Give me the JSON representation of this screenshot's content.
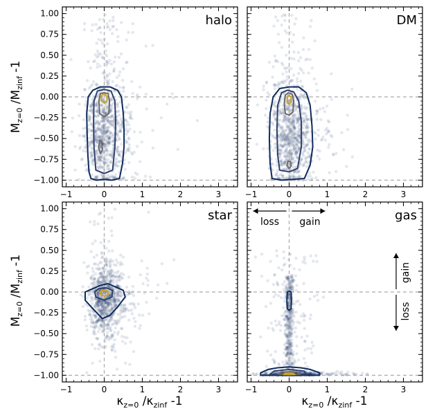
{
  "figure": {
    "xlabel": "κz=0 /κzinf -1",
    "ylabel": "Mz=0 /Mzinf -1",
    "xlabel_parts": {
      "kappa": "κ",
      "sub1": "z=0",
      "mid": " /",
      "sub2": "zinf",
      "tail": " -1"
    },
    "ylabel_parts": {
      "m": "M",
      "sub1": "z=0",
      "mid": " /M",
      "sub2": "zinf",
      "tail": " -1"
    }
  },
  "chart_data": [
    {
      "type": "scatter",
      "panel": "halo",
      "xlim": [
        -1.1,
        3.5
      ],
      "ylim": [
        -1.08,
        1.08
      ],
      "xticks": [
        -1,
        0,
        1,
        2,
        3
      ],
      "yticks": [
        -1.0,
        -0.75,
        -0.5,
        -0.25,
        0.0,
        0.25,
        0.5,
        0.75,
        1.0
      ],
      "ref_lines": {
        "x": 0,
        "y": [
          0,
          -1
        ]
      },
      "density_center": [
        0.0,
        -0.4
      ],
      "contours": [
        {
          "level": "outer",
          "color": "#0d2a5c",
          "points": [
            [
              -0.35,
              -0.98
            ],
            [
              -0.2,
              -1.0
            ],
            [
              0.0,
              -0.99
            ],
            [
              0.2,
              -1.0
            ],
            [
              0.4,
              -0.98
            ],
            [
              0.48,
              -0.8
            ],
            [
              0.52,
              -0.6
            ],
            [
              0.52,
              -0.4
            ],
            [
              0.5,
              -0.2
            ],
            [
              0.45,
              0.0
            ],
            [
              0.35,
              0.08
            ],
            [
              0.15,
              0.12
            ],
            [
              -0.1,
              0.12
            ],
            [
              -0.3,
              0.08
            ],
            [
              -0.42,
              0.0
            ],
            [
              -0.46,
              -0.2
            ],
            [
              -0.45,
              -0.45
            ],
            [
              -0.43,
              -0.7
            ],
            [
              -0.4,
              -0.9
            ]
          ]
        },
        {
          "level": "mid",
          "color": "#2e3f6b",
          "points": [
            [
              -0.22,
              -0.88
            ],
            [
              0.0,
              -0.92
            ],
            [
              0.22,
              -0.88
            ],
            [
              0.28,
              -0.6
            ],
            [
              0.3,
              -0.3
            ],
            [
              0.28,
              -0.05
            ],
            [
              0.18,
              0.07
            ],
            [
              0.0,
              0.09
            ],
            [
              -0.18,
              0.07
            ],
            [
              -0.27,
              -0.05
            ],
            [
              -0.28,
              -0.3
            ],
            [
              -0.27,
              -0.6
            ]
          ]
        },
        {
          "level": "inner",
          "color": "#6a6a6a",
          "points": [
            [
              -0.12,
              -0.2
            ],
            [
              0.0,
              -0.24
            ],
            [
              0.12,
              -0.2
            ],
            [
              0.14,
              -0.05
            ],
            [
              0.1,
              0.04
            ],
            [
              0.0,
              0.05
            ],
            [
              -0.1,
              0.04
            ],
            [
              -0.14,
              -0.05
            ]
          ]
        },
        {
          "level": "inner2",
          "color": "#6a6a6a",
          "points": [
            [
              -0.15,
              -0.6
            ],
            [
              -0.1,
              -0.68
            ],
            [
              -0.05,
              -0.64
            ],
            [
              -0.06,
              -0.55
            ],
            [
              -0.11,
              -0.52
            ]
          ]
        },
        {
          "level": "core",
          "color": "#c9a227",
          "points": [
            [
              -0.07,
              -0.05
            ],
            [
              0.0,
              -0.07
            ],
            [
              0.07,
              -0.05
            ],
            [
              0.08,
              0.0
            ],
            [
              0.03,
              0.03
            ],
            [
              -0.04,
              0.03
            ],
            [
              -0.08,
              0.0
            ]
          ]
        }
      ]
    },
    {
      "type": "scatter",
      "panel": "DM",
      "xlim": [
        -1.1,
        3.5
      ],
      "ylim": [
        -1.08,
        1.08
      ],
      "xticks": [
        -1,
        0,
        1,
        2,
        3
      ],
      "yticks": [
        -1.0,
        -0.75,
        -0.5,
        -0.25,
        0.0,
        0.25,
        0.5,
        0.75,
        1.0
      ],
      "ref_lines": {
        "x": 0,
        "y": [
          0,
          -1
        ]
      },
      "density_center": [
        0.0,
        -0.4
      ],
      "contours": [
        {
          "level": "outer",
          "color": "#0d2a5c",
          "points": [
            [
              -0.45,
              -0.98
            ],
            [
              -0.2,
              -1.0
            ],
            [
              0.1,
              -0.99
            ],
            [
              0.4,
              -0.98
            ],
            [
              0.55,
              -0.82
            ],
            [
              0.62,
              -0.6
            ],
            [
              0.6,
              -0.35
            ],
            [
              0.55,
              -0.1
            ],
            [
              0.45,
              0.05
            ],
            [
              0.25,
              0.12
            ],
            [
              0.0,
              0.12
            ],
            [
              -0.25,
              0.1
            ],
            [
              -0.42,
              0.0
            ],
            [
              -0.5,
              -0.2
            ],
            [
              -0.52,
              -0.5
            ],
            [
              -0.5,
              -0.8
            ]
          ]
        },
        {
          "level": "mid",
          "color": "#2e3f6b",
          "points": [
            [
              -0.25,
              -0.88
            ],
            [
              0.0,
              -0.9
            ],
            [
              0.22,
              -0.86
            ],
            [
              0.32,
              -0.6
            ],
            [
              0.32,
              -0.3
            ],
            [
              0.25,
              -0.05
            ],
            [
              0.12,
              0.06
            ],
            [
              -0.05,
              0.08
            ],
            [
              -0.2,
              0.05
            ],
            [
              -0.3,
              -0.1
            ],
            [
              -0.32,
              -0.4
            ],
            [
              -0.3,
              -0.7
            ]
          ]
        },
        {
          "level": "inner",
          "color": "#6a6a6a",
          "points": [
            [
              -0.1,
              -0.2
            ],
            [
              0.0,
              -0.22
            ],
            [
              0.1,
              -0.18
            ],
            [
              0.12,
              -0.05
            ],
            [
              0.08,
              0.03
            ],
            [
              -0.02,
              0.05
            ],
            [
              -0.1,
              0.02
            ],
            [
              -0.13,
              -0.08
            ]
          ]
        },
        {
          "level": "inner2",
          "color": "#6a6a6a",
          "points": [
            [
              -0.06,
              -0.82
            ],
            [
              0.0,
              -0.86
            ],
            [
              0.05,
              -0.83
            ],
            [
              0.04,
              -0.78
            ],
            [
              -0.03,
              -0.77
            ]
          ]
        },
        {
          "level": "core",
          "color": "#c9a227",
          "points": [
            [
              -0.05,
              -0.07
            ],
            [
              0.0,
              -0.09
            ],
            [
              0.05,
              -0.06
            ],
            [
              0.05,
              0.0
            ],
            [
              0.0,
              0.02
            ],
            [
              -0.05,
              0.0
            ]
          ]
        }
      ]
    },
    {
      "type": "scatter",
      "panel": "star",
      "xlim": [
        -1.1,
        3.5
      ],
      "ylim": [
        -1.08,
        1.08
      ],
      "xticks": [
        -1,
        0,
        1,
        2,
        3
      ],
      "yticks": [
        -1.0,
        -0.75,
        -0.5,
        -0.25,
        0.0,
        0.25,
        0.5,
        0.75,
        1.0
      ],
      "ref_lines": {
        "x": 0,
        "y": [
          0,
          -1
        ]
      },
      "density_center": [
        0.0,
        -0.05
      ],
      "contours": [
        {
          "level": "outer",
          "color": "#0d2a5c",
          "points": [
            [
              -0.5,
              -0.1
            ],
            [
              -0.3,
              -0.2
            ],
            [
              -0.05,
              -0.32
            ],
            [
              0.15,
              -0.28
            ],
            [
              0.35,
              -0.18
            ],
            [
              0.55,
              -0.06
            ],
            [
              0.5,
              0.02
            ],
            [
              0.3,
              0.06
            ],
            [
              0.1,
              0.1
            ],
            [
              -0.1,
              0.08
            ],
            [
              -0.3,
              0.04
            ],
            [
              -0.5,
              0.0
            ]
          ]
        },
        {
          "level": "mid",
          "color": "#2e3f6b",
          "points": [
            [
              -0.22,
              -0.06
            ],
            [
              0.0,
              -0.1
            ],
            [
              0.2,
              -0.06
            ],
            [
              0.22,
              0.02
            ],
            [
              0.05,
              0.05
            ],
            [
              -0.15,
              0.04
            ],
            [
              -0.25,
              0.0
            ]
          ]
        },
        {
          "level": "core",
          "color": "#c9a227",
          "points": [
            [
              -0.1,
              -0.03
            ],
            [
              0.0,
              -0.05
            ],
            [
              0.1,
              -0.03
            ],
            [
              0.1,
              0.01
            ],
            [
              0.0,
              0.02
            ],
            [
              -0.1,
              0.01
            ]
          ]
        }
      ]
    },
    {
      "type": "scatter",
      "panel": "gas",
      "xlim": [
        -1.1,
        3.5
      ],
      "ylim": [
        -1.08,
        1.08
      ],
      "xticks": [
        -1,
        0,
        1,
        2,
        3
      ],
      "yticks": [
        -1.0,
        -0.75,
        -0.5,
        -0.25,
        0.0,
        0.25,
        0.5,
        0.75,
        1.0
      ],
      "ref_lines": {
        "x": 0,
        "y": [
          0,
          -1
        ]
      },
      "density_center": [
        0.0,
        -0.5
      ],
      "annotations": {
        "x_loss": "loss",
        "x_gain": "gain",
        "y_loss": "loss",
        "y_gain": "gain"
      },
      "contours": [
        {
          "level": "outer",
          "color": "#0d2a5c",
          "points": [
            [
              -0.75,
              -1.0
            ],
            [
              -0.4,
              -1.0
            ],
            [
              0.0,
              -1.0
            ],
            [
              0.4,
              -1.0
            ],
            [
              0.8,
              -1.0
            ],
            [
              0.8,
              -0.97
            ],
            [
              0.55,
              -0.93
            ],
            [
              0.3,
              -0.91
            ],
            [
              0.0,
              -0.9
            ],
            [
              -0.3,
              -0.91
            ],
            [
              -0.55,
              -0.93
            ],
            [
              -0.75,
              -0.97
            ]
          ]
        },
        {
          "level": "mid",
          "color": "#2e3f6b",
          "points": [
            [
              -0.5,
              -0.99
            ],
            [
              0.0,
              -0.99
            ],
            [
              0.45,
              -0.99
            ],
            [
              0.4,
              -0.95
            ],
            [
              0.0,
              -0.93
            ],
            [
              -0.4,
              -0.95
            ]
          ]
        },
        {
          "level": "inner",
          "color": "#6a6a6a",
          "points": [
            [
              -0.3,
              -0.985
            ],
            [
              0.0,
              -0.99
            ],
            [
              0.3,
              -0.985
            ],
            [
              0.2,
              -0.96
            ],
            [
              -0.2,
              -0.96
            ]
          ]
        },
        {
          "level": "core",
          "color": "#c9a227",
          "points": [
            [
              -0.15,
              -0.99
            ],
            [
              0.15,
              -0.99
            ],
            [
              0.1,
              -0.975
            ],
            [
              -0.1,
              -0.975
            ]
          ]
        },
        {
          "level": "blob",
          "color": "#0d2a5c",
          "points": [
            [
              -0.05,
              -0.2
            ],
            [
              0.0,
              -0.22
            ],
            [
              0.05,
              -0.2
            ],
            [
              0.06,
              -0.1
            ],
            [
              0.05,
              0.0
            ],
            [
              0.0,
              0.01
            ],
            [
              -0.05,
              0.0
            ],
            [
              -0.06,
              -0.1
            ]
          ]
        }
      ]
    }
  ]
}
